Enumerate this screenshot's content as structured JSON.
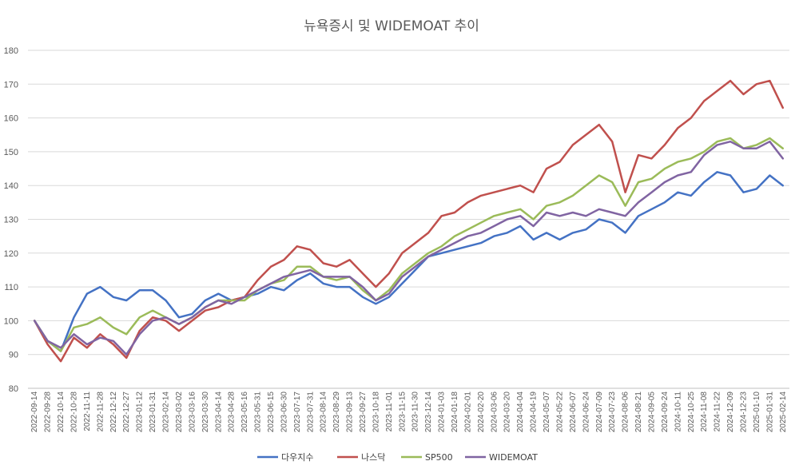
{
  "chart_data": {
    "type": "line",
    "title": "뉴욕증시 및 WIDEMOAT 추이",
    "xlabel": "",
    "ylabel": "",
    "ylim": [
      80,
      180
    ],
    "yticks": [
      80,
      90,
      100,
      110,
      120,
      130,
      140,
      150,
      160,
      170,
      180
    ],
    "grid": true,
    "legend_position": "bottom",
    "x": [
      "2022-09-14",
      "2022-09-28",
      "2022-10-14",
      "2022-10-28",
      "2022-11-11",
      "2022-11-28",
      "2022-12-12",
      "2022-12-27",
      "2023-01-12",
      "2023-01-31",
      "2023-02-14",
      "2023-03-02",
      "2023-03-16",
      "2023-03-30",
      "2023-04-14",
      "2023-04-28",
      "2023-05-16",
      "2023-05-31",
      "2023-06-15",
      "2023-06-30",
      "2023-07-17",
      "2023-07-31",
      "2023-08-14",
      "2023-08-29",
      "2023-09-13",
      "2023-09-27",
      "2023-10-18",
      "2023-11-01",
      "2023-11-15",
      "2023-11-30",
      "2023-12-14",
      "2024-01-03",
      "2024-01-18",
      "2024-02-01",
      "2024-02-20",
      "2024-03-06",
      "2024-03-20",
      "2024-04-04",
      "2024-04-19",
      "2024-05-07",
      "2024-05-22",
      "2024-06-07",
      "2024-06-24",
      "2024-07-09",
      "2024-07-23",
      "2024-08-06",
      "2024-08-21",
      "2024-09-05",
      "2024-09-24",
      "2024-10-11",
      "2024-10-25",
      "2024-11-08",
      "2024-11-22",
      "2024-12-09",
      "2024-12-23",
      "2025-01-10",
      "2025-01-31",
      "2025-02-14"
    ],
    "series": [
      {
        "name": "다우지수",
        "color": "#4472c4",
        "values": [
          100,
          94,
          91,
          101,
          108,
          110,
          107,
          106,
          109,
          109,
          106,
          101,
          102,
          106,
          108,
          106,
          107,
          108,
          110,
          109,
          112,
          114,
          111,
          110,
          110,
          107,
          105,
          107,
          111,
          115,
          119,
          120,
          121,
          122,
          123,
          125,
          126,
          128,
          124,
          126,
          124,
          126,
          127,
          130,
          129,
          126,
          131,
          133,
          135,
          138,
          137,
          141,
          144,
          143,
          138,
          139,
          143,
          140
        ]
      },
      {
        "name": "나스닥",
        "color": "#c0504d",
        "values": [
          100,
          93,
          88,
          95,
          92,
          96,
          93,
          89,
          97,
          101,
          100,
          97,
          100,
          103,
          104,
          106,
          107,
          112,
          116,
          118,
          122,
          121,
          117,
          116,
          118,
          114,
          110,
          114,
          120,
          123,
          126,
          131,
          132,
          135,
          137,
          138,
          139,
          140,
          138,
          145,
          147,
          152,
          155,
          158,
          153,
          138,
          149,
          148,
          152,
          157,
          160,
          165,
          168,
          171,
          167,
          170,
          171,
          163
        ]
      },
      {
        "name": "SP500",
        "color": "#9bbb59",
        "values": [
          100,
          94,
          91,
          98,
          99,
          101,
          98,
          96,
          101,
          103,
          101,
          99,
          101,
          104,
          106,
          106,
          106,
          109,
          111,
          112,
          116,
          116,
          113,
          112,
          113,
          109,
          106,
          109,
          114,
          117,
          120,
          122,
          125,
          127,
          129,
          131,
          132,
          133,
          130,
          134,
          135,
          137,
          140,
          143,
          141,
          134,
          141,
          142,
          145,
          147,
          148,
          150,
          153,
          154,
          151,
          152,
          154,
          151
        ]
      },
      {
        "name": "WIDEMOAT",
        "color": "#8064a2",
        "values": [
          100,
          94,
          92,
          96,
          93,
          95,
          94,
          90,
          96,
          100,
          101,
          99,
          101,
          104,
          106,
          105,
          107,
          109,
          111,
          113,
          114,
          115,
          113,
          113,
          113,
          110,
          106,
          108,
          113,
          116,
          119,
          121,
          123,
          125,
          126,
          128,
          130,
          131,
          128,
          132,
          131,
          132,
          131,
          133,
          132,
          131,
          135,
          138,
          141,
          143,
          144,
          149,
          152,
          153,
          151,
          151,
          153,
          148
        ]
      }
    ]
  }
}
